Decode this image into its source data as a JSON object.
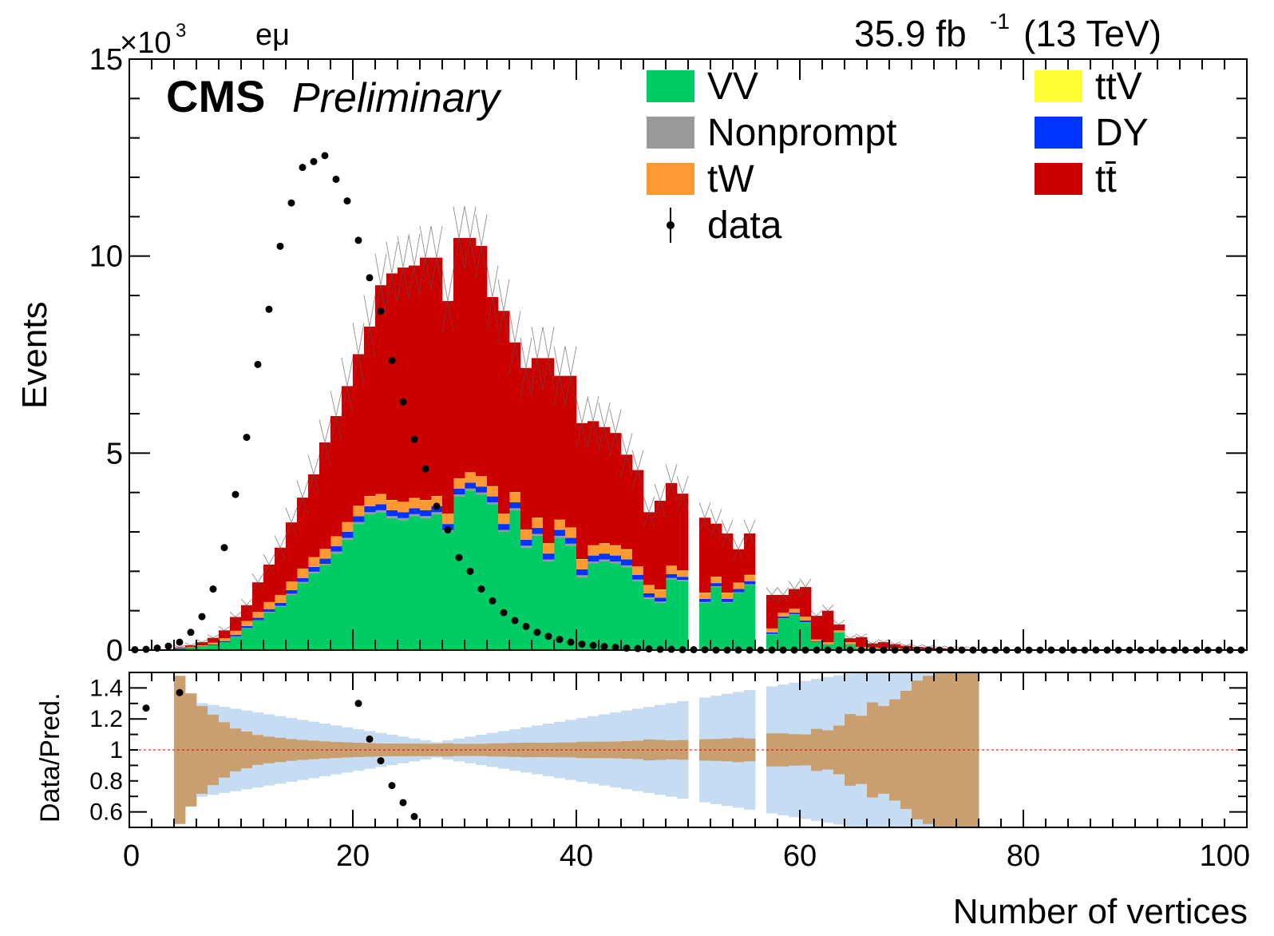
{
  "header": {
    "experiment": "CMS",
    "status": "Preliminary",
    "channel": "eμ",
    "lumi_text": "35.9 fb",
    "lumi_exp": "-1",
    "energy_text": "(13 TeV)",
    "y_multiplier": "×10",
    "y_multiplier_exp": "3"
  },
  "legend": [
    {
      "label": "VV",
      "color": "#00cc66",
      "marker": "box"
    },
    {
      "label": "Nonprompt",
      "color": "#999999",
      "marker": "box"
    },
    {
      "label": "tW",
      "color": "#ff9933",
      "marker": "box"
    },
    {
      "label": "data",
      "color": "#000000",
      "marker": "point"
    },
    {
      "label": "ttV",
      "color": "#ffff33",
      "marker": "box"
    },
    {
      "label": "DY",
      "color": "#0033ff",
      "marker": "box"
    },
    {
      "label": "tt̄",
      "color": "#cc0000",
      "marker": "box"
    }
  ],
  "chart_data": [
    {
      "type": "area",
      "ylabel": "Events",
      "xlim": [
        0,
        100
      ],
      "ylim": [
        0,
        15
      ],
      "y_unit_multiplier": 1000,
      "y_ticks": [
        "0",
        "5",
        "10",
        "15"
      ],
      "grid": false,
      "legend_position": "top-right",
      "bins": [
        0,
        1,
        2,
        3,
        4,
        5,
        6,
        7,
        8,
        9,
        10,
        11,
        12,
        13,
        14,
        15,
        16,
        17,
        18,
        19,
        20,
        21,
        22,
        23,
        24,
        25,
        26,
        27,
        28,
        29,
        30,
        31,
        32,
        33,
        34,
        35,
        36,
        37,
        38,
        39,
        40,
        41,
        42,
        43,
        44,
        45,
        46,
        47,
        48,
        49,
        50,
        51,
        52,
        53,
        54,
        55,
        56,
        57,
        58,
        59,
        60,
        61,
        62,
        63,
        64,
        65,
        66,
        67,
        68,
        69,
        70,
        71,
        72,
        73,
        74,
        75
      ],
      "series": [
        {
          "name": "VV",
          "color": "#00cc66",
          "values": [
            0,
            0,
            0,
            0,
            0.03,
            0.05,
            0.08,
            0.12,
            0.2,
            0.35,
            0.55,
            0.75,
            0.95,
            1.1,
            1.4,
            1.7,
            1.95,
            2.15,
            2.45,
            2.8,
            3.2,
            3.45,
            3.5,
            3.35,
            3.3,
            3.4,
            3.35,
            3.45,
            3.0,
            3.9,
            4.05,
            3.95,
            3.7,
            3.0,
            3.55,
            2.6,
            2.9,
            2.25,
            2.85,
            2.65,
            1.85,
            2.2,
            2.25,
            2.2,
            2.1,
            1.75,
            1.3,
            1.2,
            1.8,
            1.75,
            0,
            1.2,
            1.6,
            1.2,
            1.45,
            1.65,
            0,
            0.4,
            0.8,
            0.9,
            0.7,
            0.2,
            0.15,
            0.45,
            0.15,
            0.05,
            0.05,
            0.03,
            0.03,
            0.02,
            0.02,
            0.01,
            0.01,
            0.01,
            0.01,
            0
          ]
        },
        {
          "name": "Nonprompt",
          "color": "#999999",
          "values": [
            0,
            0,
            0,
            0,
            0,
            0,
            0,
            0,
            0,
            0,
            0.01,
            0.01,
            0.02,
            0.02,
            0.03,
            0.03,
            0.04,
            0.04,
            0.05,
            0.05,
            0.05,
            0.05,
            0.05,
            0.05,
            0.05,
            0.05,
            0.05,
            0.05,
            0.05,
            0.05,
            0.05,
            0.05,
            0.05,
            0.05,
            0.05,
            0.05,
            0.05,
            0.05,
            0.05,
            0.05,
            0.05,
            0.05,
            0.05,
            0.05,
            0.05,
            0.04,
            0.04,
            0.03,
            0.03,
            0.03,
            0,
            0.02,
            0.02,
            0.02,
            0.02,
            0.02,
            0,
            0.01,
            0.01,
            0.01,
            0.01,
            0,
            0,
            0,
            0,
            0,
            0,
            0,
            0,
            0,
            0,
            0,
            0,
            0,
            0,
            0
          ]
        },
        {
          "name": "DY",
          "color": "#0033ff",
          "values": [
            0,
            0,
            0,
            0,
            0.01,
            0.01,
            0.01,
            0.02,
            0.03,
            0.04,
            0.05,
            0.06,
            0.07,
            0.08,
            0.09,
            0.1,
            0.12,
            0.13,
            0.14,
            0.15,
            0.15,
            0.15,
            0.15,
            0.15,
            0.15,
            0.15,
            0.15,
            0.15,
            0.15,
            0.15,
            0.15,
            0.15,
            0.15,
            0.15,
            0.15,
            0.15,
            0.15,
            0.15,
            0.15,
            0.15,
            0.15,
            0.15,
            0.15,
            0.15,
            0.15,
            0.12,
            0.1,
            0.1,
            0.1,
            0.08,
            0,
            0.08,
            0.08,
            0.08,
            0.08,
            0.08,
            0,
            0.04,
            0.04,
            0.04,
            0.04,
            0.02,
            0,
            0,
            0,
            0,
            0,
            0,
            0,
            0,
            0,
            0,
            0,
            0,
            0,
            0
          ]
        },
        {
          "name": "tW",
          "color": "#ff9933",
          "values": [
            0,
            0,
            0,
            0,
            0.01,
            0.02,
            0.03,
            0.05,
            0.07,
            0.1,
            0.13,
            0.15,
            0.18,
            0.2,
            0.22,
            0.24,
            0.25,
            0.25,
            0.25,
            0.25,
            0.25,
            0.25,
            0.25,
            0.25,
            0.25,
            0.25,
            0.25,
            0.25,
            0.25,
            0.25,
            0.25,
            0.25,
            0.25,
            0.25,
            0.25,
            0.25,
            0.25,
            0.25,
            0.25,
            0.25,
            0.25,
            0.25,
            0.25,
            0.25,
            0.25,
            0.2,
            0.2,
            0.2,
            0.2,
            0.15,
            0,
            0.15,
            0.15,
            0.15,
            0.15,
            0.15,
            0,
            0.1,
            0.1,
            0.1,
            0.1,
            0.05,
            0.05,
            0.05,
            0.05,
            0.03,
            0.02,
            0.02,
            0.02,
            0.01,
            0.01,
            0.01,
            0.01,
            0.01,
            0,
            0
          ]
        },
        {
          "name": "ttV",
          "color": "#ffff33",
          "values": [
            0,
            0,
            0,
            0,
            0,
            0,
            0,
            0,
            0,
            0,
            0,
            0,
            0,
            0,
            0,
            0,
            0,
            0,
            0,
            0,
            0.01,
            0.01,
            0.01,
            0.01,
            0.01,
            0.01,
            0.01,
            0.01,
            0.01,
            0.01,
            0.01,
            0.01,
            0.01,
            0.01,
            0.01,
            0.01,
            0.01,
            0.01,
            0.01,
            0.01,
            0.01,
            0.01,
            0.01,
            0.01,
            0.01,
            0.01,
            0.01,
            0.01,
            0.01,
            0.01,
            0,
            0.01,
            0.01,
            0.01,
            0.01,
            0.01,
            0,
            0,
            0,
            0,
            0,
            0,
            0,
            0,
            0,
            0,
            0,
            0,
            0,
            0,
            0,
            0,
            0,
            0,
            0,
            0
          ]
        },
        {
          "name": "tt̄",
          "color": "#cc0000",
          "values": [
            0,
            0,
            0,
            0,
            0.02,
            0.04,
            0.08,
            0.12,
            0.2,
            0.35,
            0.4,
            0.75,
            0.95,
            1.2,
            1.5,
            1.8,
            2.1,
            2.7,
            3.05,
            3.45,
            3.85,
            4.3,
            5.3,
            5.75,
            5.95,
            5.9,
            6.15,
            6.05,
            5.4,
            6.1,
            5.95,
            5.85,
            4.8,
            5.15,
            3.8,
            4.1,
            4.05,
            4.7,
            3.65,
            3.85,
            3.45,
            3.15,
            2.95,
            2.85,
            2.4,
            2.45,
            1.85,
            2.25,
            2.1,
            1.95,
            0,
            1.9,
            1.35,
            1.5,
            0.85,
            1.05,
            0,
            0.85,
            0.45,
            0.5,
            0.75,
            0.6,
            0.8,
            0.15,
            0.1,
            0.25,
            0.1,
            0.15,
            0.1,
            0.08,
            0.05,
            0.05,
            0.03,
            0.02,
            0.02,
            0.02
          ]
        },
        {
          "name": "data",
          "color": "#000000",
          "x": [
            0,
            1,
            2,
            3,
            4,
            5,
            6,
            7,
            8,
            9,
            10,
            11,
            12,
            13,
            14,
            15,
            16,
            17,
            18,
            19,
            20,
            21,
            22,
            23,
            24,
            25,
            26,
            27,
            28,
            29,
            30,
            31,
            32,
            33,
            34,
            35,
            36,
            37,
            38,
            39,
            40,
            41,
            42,
            43,
            44,
            45,
            46,
            47,
            48,
            49,
            50,
            51,
            52,
            53,
            54,
            55,
            56,
            57,
            58,
            59,
            60,
            61,
            62,
            63,
            64,
            65,
            66,
            67,
            68,
            69,
            70,
            71,
            72,
            73,
            74,
            75,
            76,
            77,
            78,
            79,
            80,
            81,
            82,
            83,
            84,
            85,
            86,
            87,
            88,
            89,
            90,
            91,
            92,
            93,
            94,
            95,
            96,
            97,
            98,
            99
          ],
          "values": [
            0.01,
            0.02,
            0.05,
            0.1,
            0.2,
            0.45,
            0.85,
            1.55,
            2.6,
            3.95,
            5.4,
            7.25,
            8.65,
            10.25,
            11.35,
            12.25,
            12.4,
            12.55,
            11.95,
            11.4,
            10.4,
            9.45,
            8.6,
            7.35,
            6.3,
            5.35,
            4.6,
            3.65,
            3.05,
            2.35,
            2.0,
            1.55,
            1.25,
            0.95,
            0.75,
            0.6,
            0.45,
            0.35,
            0.27,
            0.2,
            0.15,
            0.12,
            0.09,
            0.07,
            0.05,
            0.04,
            0.03,
            0.02,
            0.02,
            0.01,
            0.01,
            0.01,
            0,
            0,
            0,
            0,
            0,
            0,
            0,
            0,
            0,
            0,
            0,
            0,
            0,
            0,
            0,
            0,
            0,
            0,
            0,
            0,
            0,
            0,
            0,
            0,
            0,
            0,
            0,
            0,
            0,
            0,
            0,
            0,
            0,
            0,
            0,
            0,
            0,
            0,
            0,
            0,
            0,
            0,
            0,
            0,
            0,
            0,
            0,
            0
          ]
        }
      ]
    },
    {
      "type": "scatter",
      "ylabel": "Data/Pred.",
      "xlabel": "Number of vertices",
      "xlim": [
        0,
        100
      ],
      "ylim": [
        0.5,
        1.5
      ],
      "x_ticks": [
        "0",
        "20",
        "40",
        "60",
        "80",
        "100"
      ],
      "y_ticks": [
        "0.6",
        "0.8",
        "1",
        "1.2",
        "1.4"
      ],
      "reference_line": 1,
      "series": [
        {
          "name": "ratio",
          "color": "#000000",
          "x": [
            1,
            4,
            20,
            21,
            22,
            23,
            24,
            25
          ],
          "values": [
            1.27,
            1.37,
            1.3,
            1.07,
            0.93,
            0.77,
            0.66,
            0.57
          ]
        }
      ]
    }
  ]
}
